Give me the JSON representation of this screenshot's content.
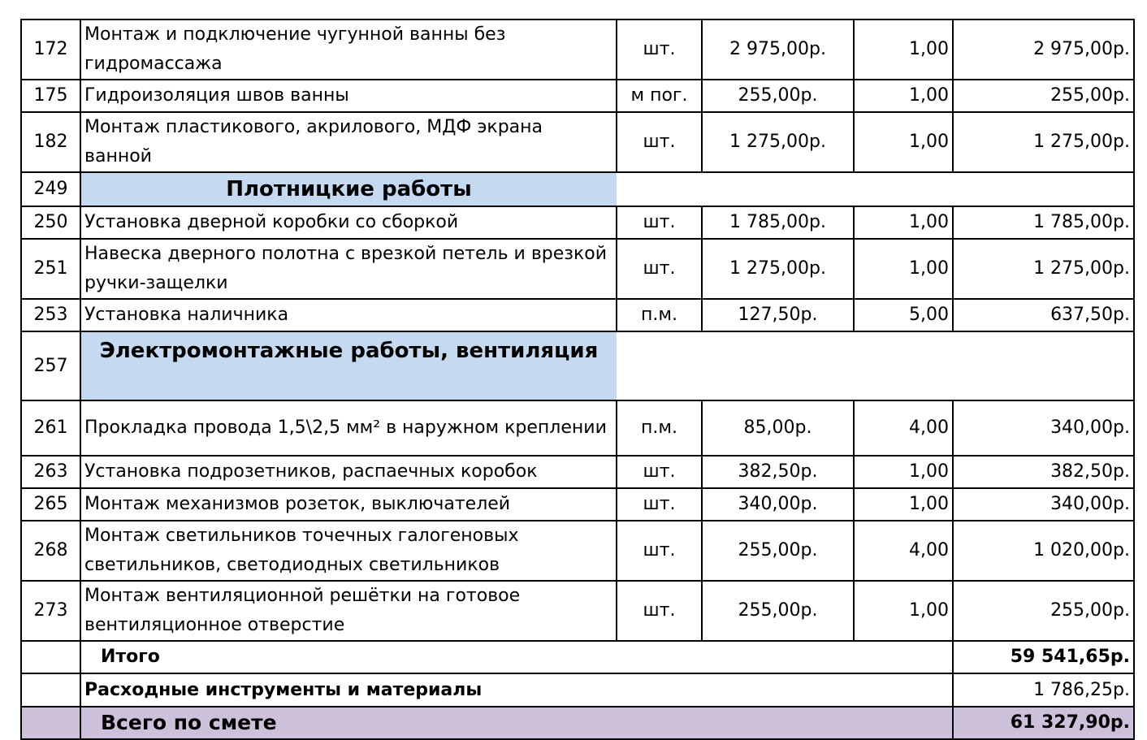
{
  "rows": [
    {
      "num": "172",
      "name": "Монтаж и подключение чугунной ванны без гидромассажа",
      "unit": "шт.",
      "price": "2 975,00р.",
      "qty": "1,00",
      "sum": "2 975,00р."
    },
    {
      "num": "175",
      "name": "Гидроизоляция швов ванны",
      "unit": "м пог.",
      "price": "255,00р.",
      "qty": "1,00",
      "sum": "255,00р."
    },
    {
      "num": "182",
      "name": "Монтаж пластикового, акрилового, МДФ экрана ванной",
      "unit": "шт.",
      "price": "1 275,00р.",
      "qty": "1,00",
      "sum": "1 275,00р."
    },
    {
      "num": "249",
      "section": "Плотницкие работы"
    },
    {
      "num": "250",
      "name": "Установка дверной коробки со сборкой",
      "unit": "шт.",
      "price": "1 785,00р.",
      "qty": "1,00",
      "sum": "1 785,00р."
    },
    {
      "num": "251",
      "name": "Навеска дверного полотна с врезкой петель и врезкой ручки-защелки",
      "unit": "шт.",
      "price": "1 275,00р.",
      "qty": "1,00",
      "sum": "1 275,00р."
    },
    {
      "num": "253",
      "name": "Установка наличника",
      "unit": "п.м.",
      "price": "127,50р.",
      "qty": "5,00",
      "sum": "637,50р."
    },
    {
      "num": "257",
      "section": "Электромонтажные работы, вентиляция"
    },
    {
      "num": "261",
      "name": "Прокладка провода 1,5\\2,5 мм² в наружном креплении",
      "unit": "п.м.",
      "price": "85,00р.",
      "qty": "4,00",
      "sum": "340,00р."
    },
    {
      "num": "263",
      "name": "Установка подрозетников, распаечных коробок",
      "unit": "шт.",
      "price": "382,50р.",
      "qty": "1,00",
      "sum": "382,50р."
    },
    {
      "num": "265",
      "name": "Монтаж механизмов розеток, выключателей",
      "unit": "шт.",
      "price": "340,00р.",
      "qty": "1,00",
      "sum": "340,00р."
    },
    {
      "num": "268",
      "name": "Монтаж светильников точечных галогеновых светильников, светодиодных светильников",
      "unit": "шт.",
      "price": "255,00р.",
      "qty": "4,00",
      "sum": "1 020,00р."
    },
    {
      "num": "273",
      "name": "Монтаж вентиляционной решётки на готовое вентиляционное отверстие",
      "unit": "шт.",
      "price": "255,00р.",
      "qty": "1,00",
      "sum": "255,00р."
    }
  ],
  "totals": {
    "subtotal_label": "Итого",
    "subtotal_value": "59 541,65р.",
    "consumables_label": "Расходные инструменты и материалы",
    "consumables_value": "1 786,25р.",
    "grand_label": "Всего по смете",
    "grand_value": "61 327,90р."
  },
  "colors": {
    "section_bg": "#c5d9f1",
    "grand_bg": "#ccc0da"
  }
}
